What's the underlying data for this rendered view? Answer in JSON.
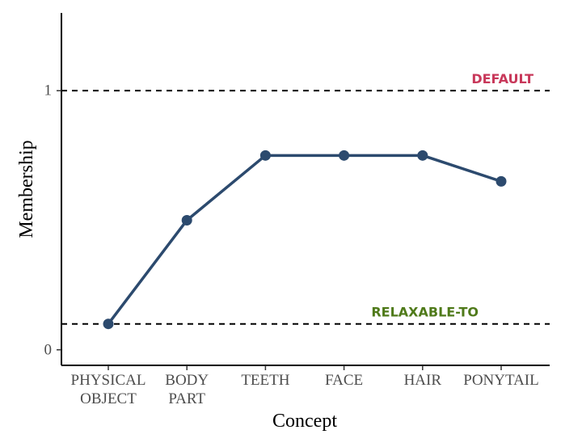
{
  "chart_data": {
    "type": "line",
    "xlabel": "Concept",
    "ylabel": "Membership",
    "categories": [
      [
        "PHYSICAL",
        "OBJECT"
      ],
      [
        "BODY",
        "PART"
      ],
      [
        "TEETH"
      ],
      [
        "FACE"
      ],
      [
        "HAIR"
      ],
      [
        "PONYTAIL"
      ]
    ],
    "values": [
      0.1,
      0.5,
      0.75,
      0.75,
      0.75,
      0.65
    ],
    "ylim": [
      -0.06,
      1.3
    ],
    "yticks": [
      "0",
      "1"
    ],
    "line_color": "#2c4a6e",
    "reference_lines": [
      {
        "label": "DEFAULT",
        "value": 1.0,
        "color": "#c8385a"
      },
      {
        "label": "RELAXABLE-TO",
        "value": 0.1,
        "color": "#4f7a1a"
      }
    ],
    "grid": false,
    "legend": "none"
  }
}
